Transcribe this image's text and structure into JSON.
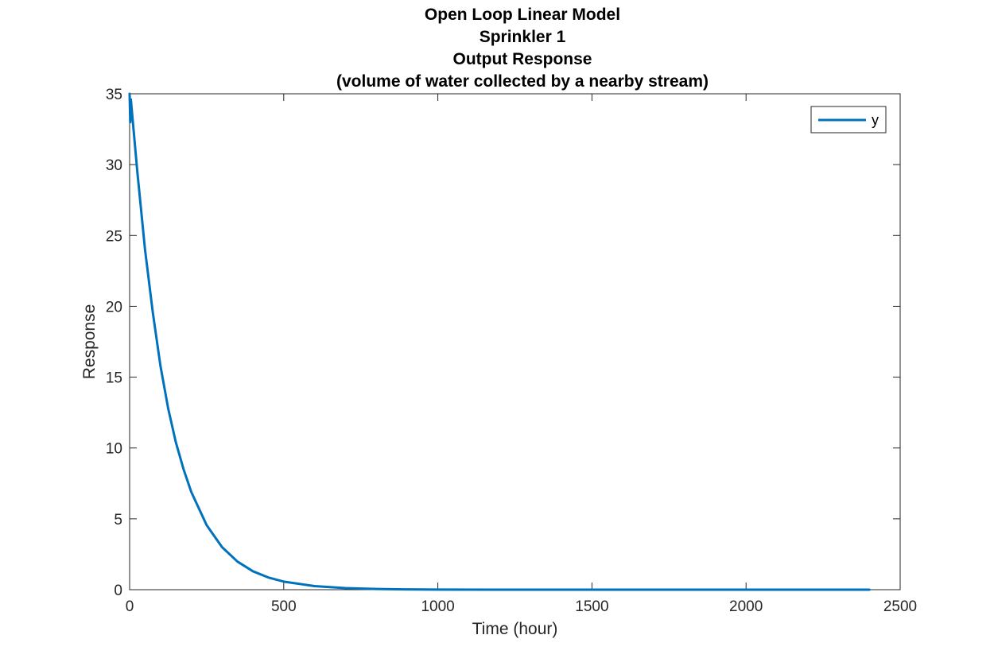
{
  "chart_data": {
    "type": "line",
    "title_lines": [
      "Open Loop Linear Model",
      "Sprinkler 1",
      "Output Response",
      "(volume of water collected by a nearby stream)"
    ],
    "xlabel": "Time (hour)",
    "ylabel": "Response",
    "xlim": [
      0,
      2500
    ],
    "ylim": [
      0,
      35
    ],
    "xticks": [
      0,
      500,
      1000,
      1500,
      2000,
      2500
    ],
    "yticks": [
      0,
      5,
      10,
      15,
      20,
      25,
      30,
      35
    ],
    "grid": false,
    "legend_position": "top-right",
    "series": [
      {
        "name": "y",
        "color": "#0072BD",
        "x": [
          0,
          2,
          4,
          25,
          50,
          75,
          100,
          125,
          150,
          175,
          200,
          250,
          300,
          350,
          400,
          450,
          500,
          600,
          700,
          800,
          900,
          1000,
          1200,
          1500,
          2000,
          2400
        ],
        "y": [
          35,
          33,
          34.6,
          29.5,
          24.0,
          19.6,
          15.8,
          12.8,
          10.4,
          8.5,
          6.9,
          4.55,
          3.0,
          1.98,
          1.3,
          0.86,
          0.57,
          0.25,
          0.11,
          0.05,
          0.02,
          0.01,
          0.0,
          0.0,
          0.0,
          0.0
        ]
      }
    ]
  }
}
